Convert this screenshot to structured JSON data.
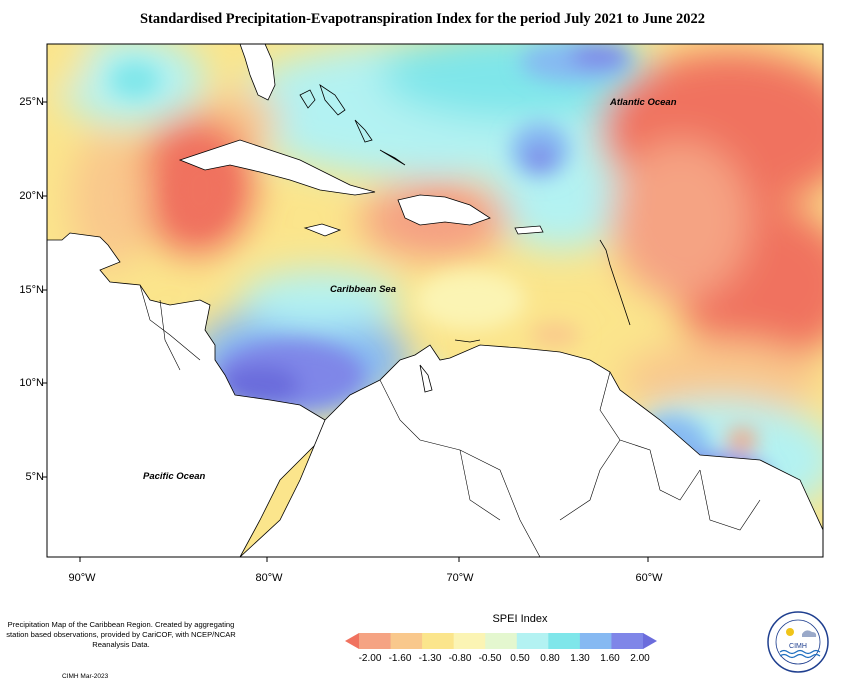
{
  "title": "Standardised Precipitation-Evapotranspiration Index for the period July 2021 to June 2022",
  "axes": {
    "lat_labels": [
      "25°N",
      "20°N",
      "15°N",
      "10°N",
      "5°N"
    ],
    "lon_labels": [
      "90°W",
      "80°W",
      "70°W",
      "60°W"
    ]
  },
  "map_labels": {
    "atlantic": "Atlantic Ocean",
    "caribbean": "Caribbean Sea",
    "pacific": "Pacific Ocean"
  },
  "legend": {
    "title": "SPEI Index",
    "ticks": [
      "-2.00",
      "-1.60",
      "-1.30",
      "-0.80",
      "-0.50",
      "0.50",
      "0.80",
      "1.30",
      "1.60",
      "2.00"
    ],
    "colors": [
      "#f0725f",
      "#f5a383",
      "#f9c88c",
      "#fbe58c",
      "#fbf4b4",
      "#e4f7cf",
      "#b3f2f2",
      "#7fe6ea",
      "#86b9f2",
      "#7f86e8",
      "#6b6cdc"
    ]
  },
  "footer": {
    "description": "Precipitation Map of the Caribbean Region. Created by aggregating station based observations, provided by CariCOF, with NCEP/NCAR Reanalysis Data.",
    "credit": "CIMH Mar-2023"
  },
  "logo": {
    "text": "CIMH"
  },
  "colors": {
    "land": "#ffffff",
    "border": "#000000"
  }
}
